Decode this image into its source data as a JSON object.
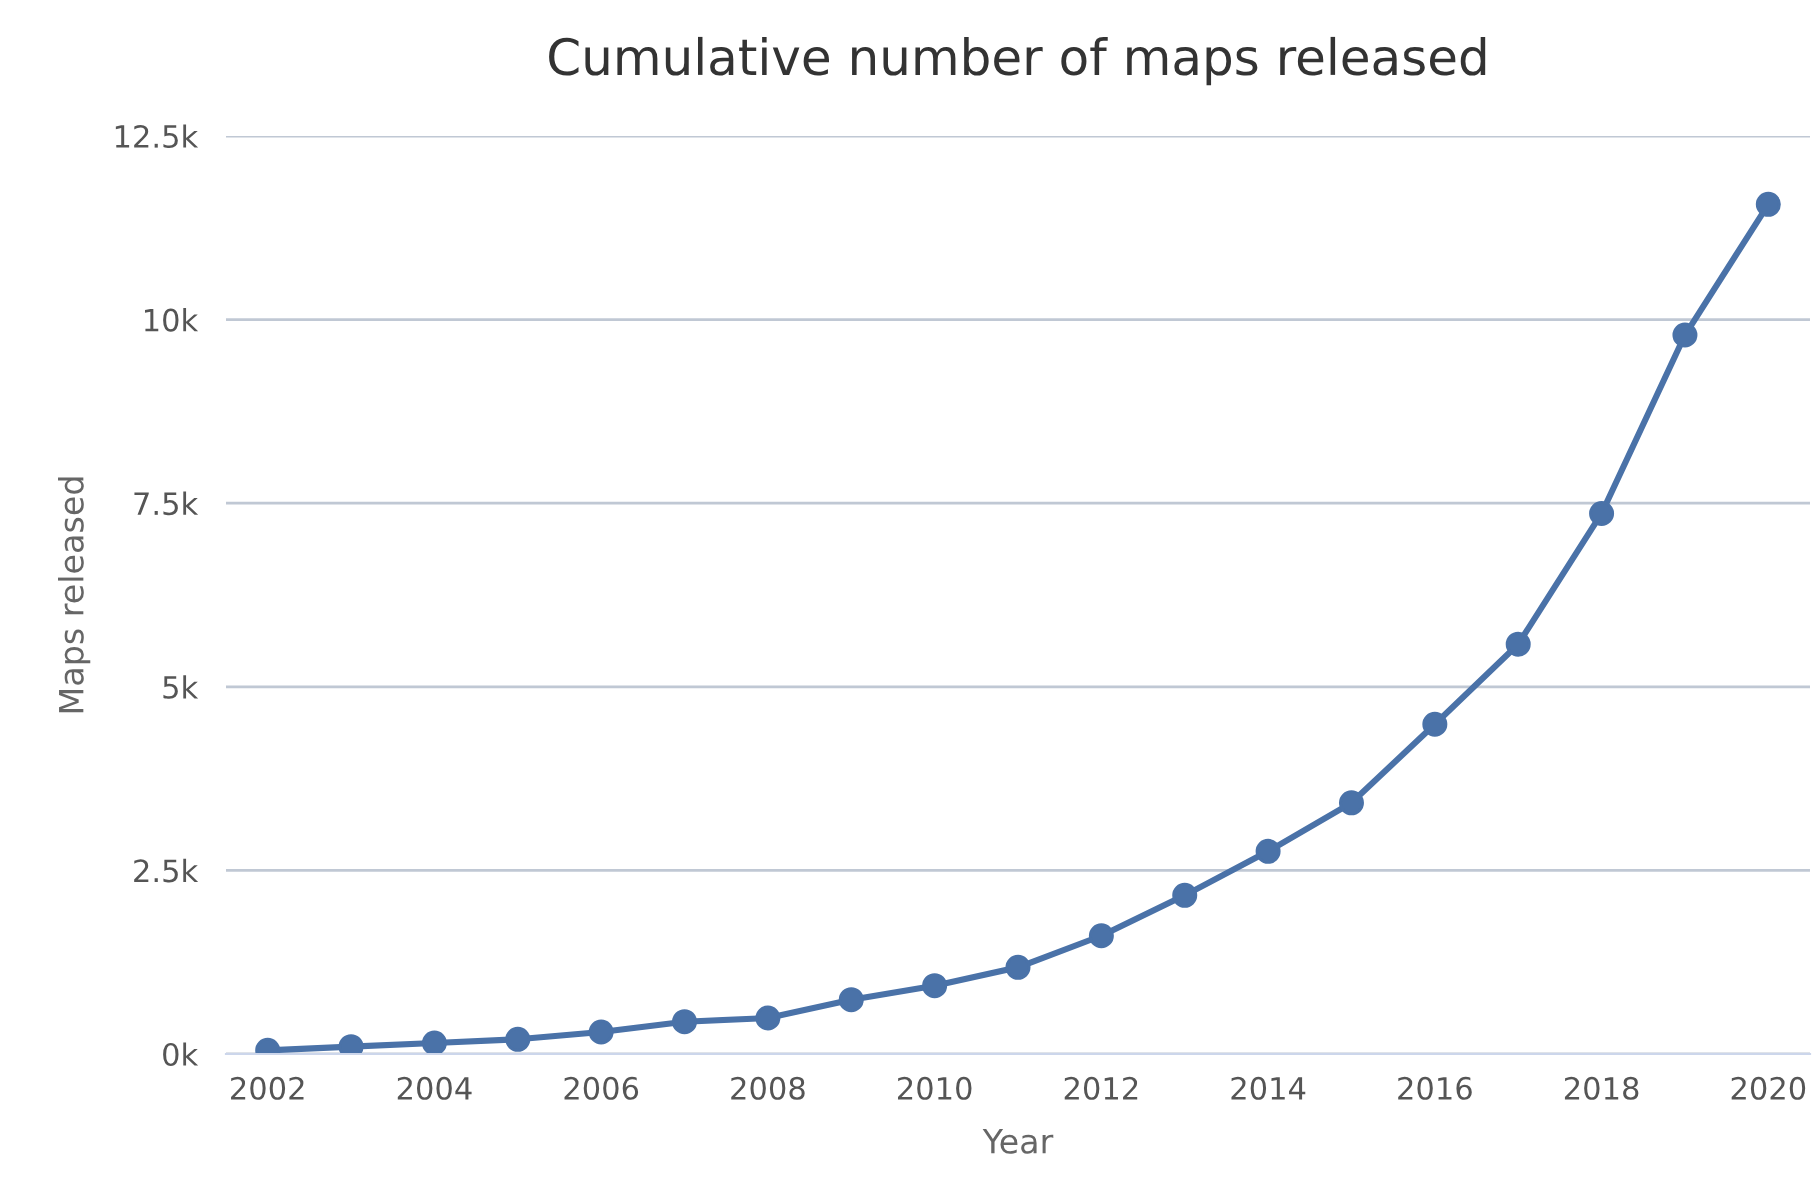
{
  "chart_data": {
    "type": "line",
    "title": "Cumulative number of maps released",
    "xlabel": "Year",
    "ylabel": "Maps released",
    "categories": [
      "2002",
      null,
      "2004",
      null,
      "2006",
      null,
      "2008",
      null,
      "2010",
      null,
      "2012",
      null,
      "2014",
      null,
      "2016",
      null,
      "2018",
      null,
      "2020"
    ],
    "series": [
      {
        "color": "#4a72a8",
        "values": [
          50,
          100,
          150,
          200,
          300,
          440,
          490,
          740,
          930,
          1180,
          1610,
          2160,
          2760,
          3420,
          4490,
          5580,
          7360,
          9790,
          11570
        ]
      }
    ],
    "ylim": [
      0,
      12500
    ],
    "yticks": [
      {
        "value": 0,
        "label": "0k"
      },
      {
        "value": 2500,
        "label": "2.5k"
      },
      {
        "value": 5000,
        "label": "5k"
      },
      {
        "value": 7500,
        "label": "7.5k"
      },
      {
        "value": 10000,
        "label": "10k"
      },
      {
        "value": 12500,
        "label": "12.5k"
      }
    ],
    "grid": "y",
    "marker": "circle",
    "line_style": "solid",
    "legend": false
  }
}
